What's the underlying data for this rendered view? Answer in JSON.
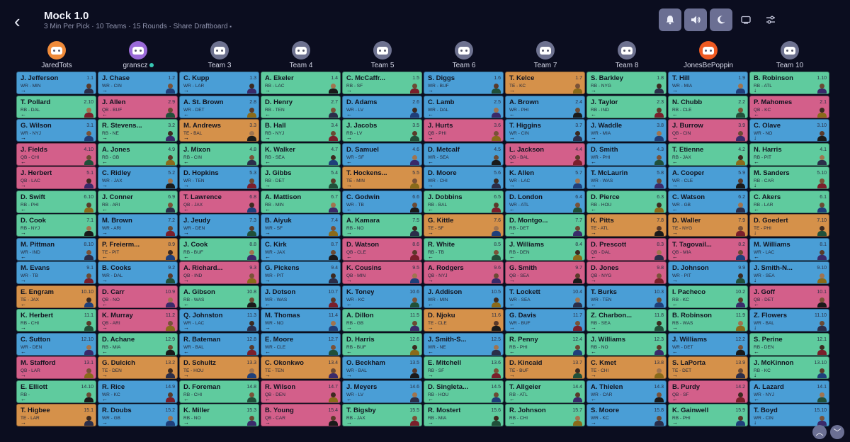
{
  "header": {
    "title": "Mock 1.0",
    "info": "3 Min Per Pick · 10 Teams · 15 Rounds ·",
    "share_label": "Share Draftboard",
    "buttons": [
      "bell-icon",
      "volume-icon",
      "moon-icon",
      "tv-icon",
      "settings-icon"
    ]
  },
  "colors": {
    "WR": "#4a9ed6",
    "RB": "#5fcb9e",
    "QB": "#d35f8a",
    "TE": "#d5914a",
    "background": "#0b0d1f"
  },
  "teams": [
    {
      "name": "JaredTots",
      "avatar": "orange"
    },
    {
      "name": "granscz",
      "avatar": "purple",
      "online": true
    },
    {
      "name": "Team 3",
      "avatar": "gray"
    },
    {
      "name": "Team 4",
      "avatar": "gray"
    },
    {
      "name": "Team 5",
      "avatar": "gray"
    },
    {
      "name": "Team 6",
      "avatar": "gray"
    },
    {
      "name": "Team 7",
      "avatar": "gray"
    },
    {
      "name": "Team 8",
      "avatar": "gray"
    },
    {
      "name": "JonesBePoppin",
      "avatar": "orangered"
    },
    {
      "name": "Team 10",
      "avatar": "gray"
    }
  ],
  "rounds": [
    [
      [
        "J. Jefferson",
        "WR - MIN",
        "1.1",
        "→"
      ],
      [
        "J. Chase",
        "WR - CIN",
        "1.2",
        "→"
      ],
      [
        "C. Kupp",
        "WR - LAR",
        "1.3",
        "→"
      ],
      [
        "A. Ekeler",
        "RB - LAC",
        "1.4",
        "→"
      ],
      [
        "C. McCaffr...",
        "RB - SF",
        "1.5",
        "→"
      ],
      [
        "S. Diggs",
        "WR - BUF",
        "1.6",
        "→"
      ],
      [
        "T. Kelce",
        "TE - KC",
        "1.7",
        "→"
      ],
      [
        "S. Barkley",
        "RB - NYG",
        "1.8",
        "→"
      ],
      [
        "T. Hill",
        "WR - MIA",
        "1.9",
        "→"
      ],
      [
        "B. Robinson",
        "RB - ATL",
        "1.10",
        "↓"
      ]
    ],
    [
      [
        "T. Pollard",
        "RB - DAL",
        "2.10",
        "←"
      ],
      [
        "J. Allen",
        "QB - BUF",
        "2.9",
        "←"
      ],
      [
        "A. St. Brown",
        "WR - DET",
        "2.8",
        "←"
      ],
      [
        "D. Henry",
        "RB - TEN",
        "2.7",
        "←"
      ],
      [
        "D. Adams",
        "WR - LV",
        "2.6",
        "←"
      ],
      [
        "C. Lamb",
        "WR - DAL",
        "2.5",
        "←"
      ],
      [
        "A. Brown",
        "WR - PHI",
        "2.4",
        "←"
      ],
      [
        "J. Taylor",
        "RB - IND",
        "2.3",
        "←"
      ],
      [
        "N. Chubb",
        "RB - CLE",
        "2.2",
        "←"
      ],
      [
        "P. Mahomes",
        "QB - KC",
        "2.1",
        "←"
      ]
    ],
    [
      [
        "G. Wilson",
        "WR - NYJ",
        "3.1",
        "→"
      ],
      [
        "R. Stevens...",
        "RB - NE",
        "3.2",
        "→"
      ],
      [
        "M. Andrews",
        "TE - BAL",
        "3.3",
        "→"
      ],
      [
        "B. Hall",
        "RB - NYJ",
        "3.4",
        "→"
      ],
      [
        "J. Jacobs",
        "RB - LV",
        "3.5",
        "→"
      ],
      [
        "J. Hurts",
        "QB - PHI",
        "3.6",
        "→"
      ],
      [
        "T. Higgins",
        "WR - CIN",
        "3.7",
        "→"
      ],
      [
        "J. Waddle",
        "WR - MIA",
        "3.8",
        "→"
      ],
      [
        "J. Burrow",
        "QB - CIN",
        "3.9",
        "→"
      ],
      [
        "C. Olave",
        "WR - NO",
        "3.10",
        "↓"
      ]
    ],
    [
      [
        "J. Fields",
        "QB - CHI",
        "4.10",
        "←"
      ],
      [
        "A. Jones",
        "RB - GB",
        "4.9",
        "←"
      ],
      [
        "J. Mixon",
        "RB - CIN",
        "4.8",
        "←"
      ],
      [
        "K. Walker",
        "RB - SEA",
        "4.7",
        "←"
      ],
      [
        "D. Samuel",
        "WR - SF",
        "4.6",
        "←"
      ],
      [
        "D. Metcalf",
        "WR - SEA",
        "4.5",
        "←"
      ],
      [
        "L. Jackson",
        "QB - BAL",
        "4.4",
        "←"
      ],
      [
        "D. Smith",
        "WR - PHI",
        "4.3",
        "←"
      ],
      [
        "T. Etienne",
        "RB - JAX",
        "4.2",
        "←"
      ],
      [
        "N. Harris",
        "RB - PIT",
        "4.1",
        "←"
      ]
    ],
    [
      [
        "J. Herbert",
        "QB - LAC",
        "5.1",
        "→"
      ],
      [
        "C. Ridley",
        "WR - JAX",
        "5.2",
        "→"
      ],
      [
        "D. Hopkins",
        "WR - TEN",
        "5.3",
        "→"
      ],
      [
        "J. Gibbs",
        "RB - DET",
        "5.4",
        "→"
      ],
      [
        "T. Hockens...",
        "TE - MIN",
        "5.5",
        "→"
      ],
      [
        "D. Moore",
        "WR - CHI",
        "5.6",
        "→"
      ],
      [
        "K. Allen",
        "WR - LAC",
        "5.7",
        "→"
      ],
      [
        "T. McLaurin",
        "WR - WAS",
        "5.8",
        "→"
      ],
      [
        "A. Cooper",
        "WR - CLE",
        "5.9",
        "→"
      ],
      [
        "M. Sanders",
        "RB - CAR",
        "5.10",
        "↓"
      ]
    ],
    [
      [
        "D. Swift",
        "RB - PHI",
        "6.10",
        "←"
      ],
      [
        "J. Conner",
        "RB - ARI",
        "6.9",
        "←"
      ],
      [
        "T. Lawrence",
        "QB - JAX",
        "6.8",
        "←"
      ],
      [
        "A. Mattison",
        "RB - MIN",
        "6.7",
        "←"
      ],
      [
        "C. Godwin",
        "WR - TB",
        "6.6",
        "←"
      ],
      [
        "J. Dobbins",
        "RB - BAL",
        "6.5",
        "←"
      ],
      [
        "D. London",
        "WR - ATL",
        "6.4",
        "←"
      ],
      [
        "D. Pierce",
        "RB - HOU",
        "6.3",
        "←"
      ],
      [
        "C. Watson",
        "WR - GB",
        "6.2",
        "←"
      ],
      [
        "C. Akers",
        "RB - LAR",
        "6.1",
        "←"
      ]
    ],
    [
      [
        "D. Cook",
        "RB - NYJ",
        "7.1",
        "→"
      ],
      [
        "M. Brown",
        "WR - ARI",
        "7.2",
        "→"
      ],
      [
        "J. Jeudy",
        "WR - DEN",
        "7.3",
        "→"
      ],
      [
        "B. Aiyuk",
        "WR - SF",
        "7.4",
        "→"
      ],
      [
        "A. Kamara",
        "RB - NO",
        "7.5",
        "→"
      ],
      [
        "G. Kittle",
        "TE - SF",
        "7.6",
        "→"
      ],
      [
        "D. Montgo...",
        "RB - DET",
        "7.7",
        "→"
      ],
      [
        "K. Pitts",
        "TE - ATL",
        "7.8",
        "→"
      ],
      [
        "D. Waller",
        "TE - NYG",
        "7.9",
        "→"
      ],
      [
        "D. Goedert",
        "TE - PHI",
        "7.10",
        "↓"
      ]
    ],
    [
      [
        "M. Pittman",
        "WR - IND",
        "8.10",
        "←"
      ],
      [
        "P. Freierm...",
        "TE - PIT",
        "8.9",
        "←"
      ],
      [
        "J. Cook",
        "RB - BUF",
        "8.8",
        "←"
      ],
      [
        "C. Kirk",
        "WR - JAX",
        "8.7",
        "←"
      ],
      [
        "D. Watson",
        "QB - CLE",
        "8.6",
        "←"
      ],
      [
        "R. White",
        "RB - TB",
        "8.5",
        "←"
      ],
      [
        "J. Williams",
        "RB - DEN",
        "8.4",
        "←"
      ],
      [
        "D. Prescott",
        "QB - DAL",
        "8.3",
        "←"
      ],
      [
        "T. Tagovail...",
        "QB - MIA",
        "8.2",
        "←"
      ],
      [
        "M. Williams",
        "WR - LAC",
        "8.1",
        "←"
      ]
    ],
    [
      [
        "M. Evans",
        "WR - TB",
        "9.1",
        "→"
      ],
      [
        "B. Cooks",
        "WR - DAL",
        "9.2",
        "→"
      ],
      [
        "A. Richard...",
        "QB - IND",
        "9.3",
        "→"
      ],
      [
        "G. Pickens",
        "WR - PIT",
        "9.4",
        "→"
      ],
      [
        "K. Cousins",
        "QB - MIN",
        "9.5",
        "→"
      ],
      [
        "A. Rodgers",
        "QB - NYJ",
        "9.6",
        "→"
      ],
      [
        "G. Smith",
        "QB - SEA",
        "9.7",
        "→"
      ],
      [
        "D. Jones",
        "QB - NYG",
        "9.8",
        "→"
      ],
      [
        "D. Johnson",
        "WR - PIT",
        "9.9",
        "→"
      ],
      [
        "J. Smith-N...",
        "WR - SEA",
        "9.10",
        "↓"
      ]
    ],
    [
      [
        "E. Engram",
        "TE - JAX",
        "10.10",
        "←"
      ],
      [
        "D. Carr",
        "QB - NO",
        "10.9",
        "←"
      ],
      [
        "A. Gibson",
        "RB - WAS",
        "10.8",
        "←"
      ],
      [
        "J. Dotson",
        "WR - WAS",
        "10.7",
        "←"
      ],
      [
        "K. Toney",
        "WR - KC",
        "10.6",
        "←"
      ],
      [
        "J. Addison",
        "WR - MIN",
        "10.5",
        "←"
      ],
      [
        "T. Lockett",
        "WR - SEA",
        "10.4",
        "←"
      ],
      [
        "T. Burks",
        "WR - TEN",
        "10.3",
        "←"
      ],
      [
        "I. Pacheco",
        "RB - KC",
        "10.2",
        "←"
      ],
      [
        "J. Goff",
        "QB - DET",
        "10.1",
        "←"
      ]
    ],
    [
      [
        "K. Herbert",
        "RB - CHI",
        "11.1",
        "→"
      ],
      [
        "K. Murray",
        "QB - ARI",
        "11.2",
        "→"
      ],
      [
        "Q. Johnston",
        "WR - LAC",
        "11.3",
        "→"
      ],
      [
        "M. Thomas",
        "WR - NO",
        "11.4",
        "→"
      ],
      [
        "A. Dillon",
        "RB - GB",
        "11.5",
        "→"
      ],
      [
        "D. Njoku",
        "TE - CLE",
        "11.6",
        "→"
      ],
      [
        "G. Davis",
        "WR - BUF",
        "11.7",
        "→"
      ],
      [
        "Z. Charbon...",
        "RB - SEA",
        "11.8",
        "→"
      ],
      [
        "B. Robinson",
        "RB - WAS",
        "11.9",
        "→"
      ],
      [
        "Z. Flowers",
        "WR - BAL",
        "11.10",
        "↓"
      ]
    ],
    [
      [
        "C. Sutton",
        "WR - DEN",
        "12.10",
        "←"
      ],
      [
        "D. Achane",
        "RB - MIA",
        "12.9",
        "←"
      ],
      [
        "R. Bateman",
        "WR - BAL",
        "12.8",
        "←"
      ],
      [
        "E. Moore",
        "WR - CLE",
        "12.7",
        "←"
      ],
      [
        "D. Harris",
        "RB - BUF",
        "12.6",
        "←"
      ],
      [
        "J. Smith-S...",
        "WR - NE",
        "12.5",
        "←"
      ],
      [
        "R. Penny",
        "RB - PHI",
        "12.4",
        "←"
      ],
      [
        "J. Williams",
        "RB - NO",
        "12.3",
        "←"
      ],
      [
        "J. Williams",
        "WR - DET",
        "12.2",
        "←"
      ],
      [
        "S. Perine",
        "RB - DEN",
        "12.1",
        "←"
      ]
    ],
    [
      [
        "M. Stafford",
        "QB - LAR",
        "13.1",
        "→"
      ],
      [
        "G. Dulcich",
        "TE - DEN",
        "13.2",
        "→"
      ],
      [
        "D. Schultz",
        "TE - HOU",
        "13.3",
        "→"
      ],
      [
        "C. Okonkwo",
        "TE - TEN",
        "13.4",
        "→"
      ],
      [
        "O. Beckham",
        "WR - BAL",
        "13.5",
        "→"
      ],
      [
        "E. Mitchell",
        "RB - SF",
        "13.6",
        "→"
      ],
      [
        "D. Kincaid",
        "TE - BUF",
        "13.7",
        "→"
      ],
      [
        "C. Kmet",
        "TE - CHI",
        "13.8",
        "→"
      ],
      [
        "S. LaPorta",
        "TE - DET",
        "13.9",
        "→"
      ],
      [
        "J. McKinnon",
        "RB - KC",
        "13.10",
        "↓"
      ]
    ],
    [
      [
        "E. Elliott",
        "RB -",
        "14.10",
        "←"
      ],
      [
        "R. Rice",
        "WR - KC",
        "14.9",
        "←"
      ],
      [
        "D. Foreman",
        "RB - CHI",
        "14.8",
        "←"
      ],
      [
        "R. Wilson",
        "QB - DEN",
        "14.7",
        "←"
      ],
      [
        "J. Meyers",
        "WR - LV",
        "14.6",
        "←"
      ],
      [
        "D. Singleta...",
        "RB - HOU",
        "14.5",
        "←"
      ],
      [
        "T. Allgeier",
        "RB - ATL",
        "14.4",
        "←"
      ],
      [
        "A. Thielen",
        "WR - CAR",
        "14.3",
        "←"
      ],
      [
        "B. Purdy",
        "QB - SF",
        "14.2",
        "←"
      ],
      [
        "A. Lazard",
        "WR - NYJ",
        "14.1",
        "←"
      ]
    ],
    [
      [
        "T. Higbee",
        "TE - LAR",
        "15.1",
        "→"
      ],
      [
        "R. Doubs",
        "WR - GB",
        "15.2",
        "→"
      ],
      [
        "K. Miller",
        "RB - NO",
        "15.3",
        "→"
      ],
      [
        "B. Young",
        "QB - CAR",
        "15.4",
        "→"
      ],
      [
        "T. Bigsby",
        "RB - JAX",
        "15.5",
        "→"
      ],
      [
        "R. Mostert",
        "RB - MIA",
        "15.6",
        "→"
      ],
      [
        "R. Johnson",
        "RB - CHI",
        "15.7",
        "→"
      ],
      [
        "S. Moore",
        "WR - KC",
        "15.8",
        "→"
      ],
      [
        "K. Gainwell",
        "RB - PHI",
        "15.9",
        "→"
      ],
      [
        "T. Boyd",
        "WR - CIN",
        "15.10",
        "↓"
      ]
    ]
  ],
  "scroll": {
    "up_icon": "chevron-up-icon",
    "down_icon": "chevron-down-icon"
  }
}
